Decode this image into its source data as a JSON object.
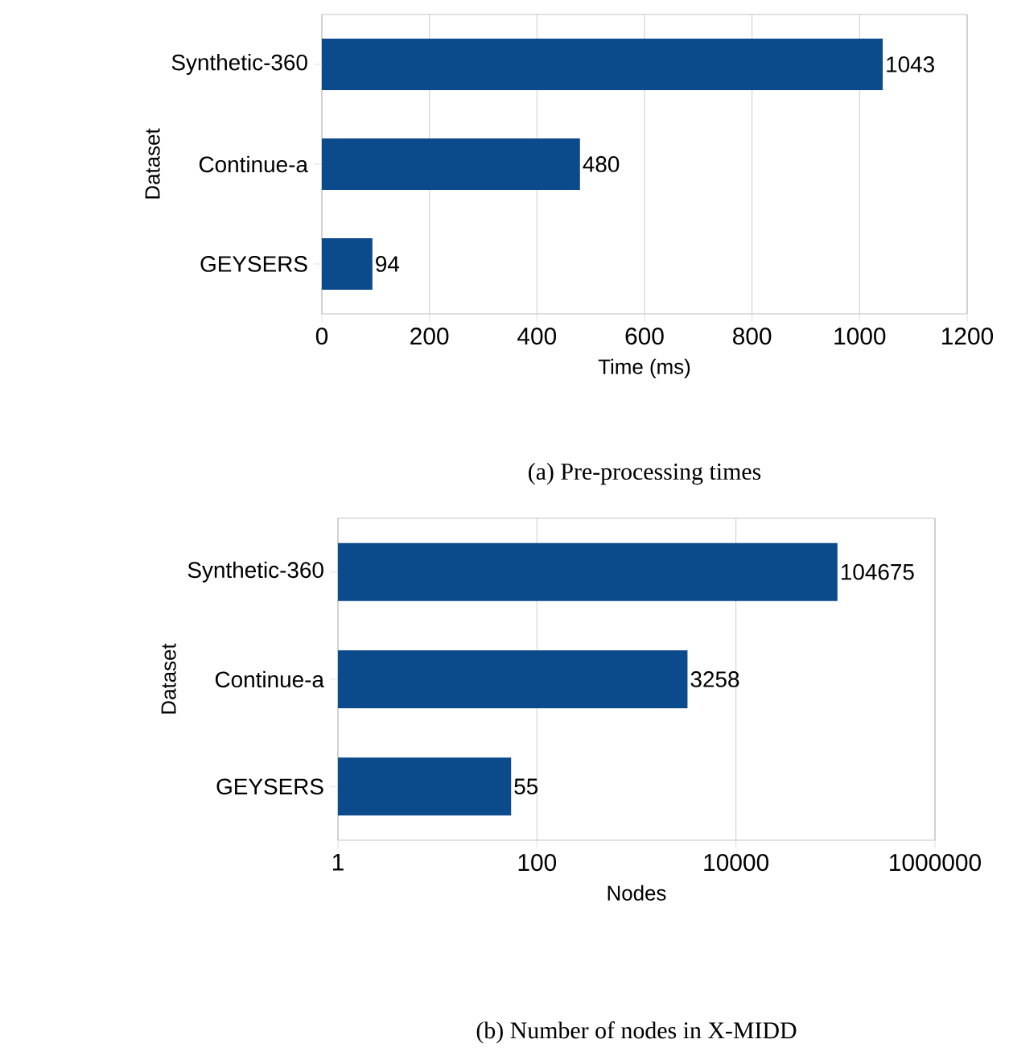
{
  "chart_data": [
    {
      "type": "bar",
      "orientation": "horizontal",
      "title": "(a) Pre-processing times",
      "xlabel": "Time (ms)",
      "ylabel": "Dataset",
      "categories": [
        "Synthetic-360",
        "Continue-a",
        "GEYSERS"
      ],
      "values": [
        1043,
        480,
        94
      ],
      "color": "#0b4a8b",
      "xlim": [
        0,
        1200
      ],
      "xticks": [
        0,
        200,
        400,
        600,
        800,
        1000,
        1200
      ],
      "grid": "x",
      "data_labels": true
    },
    {
      "type": "bar",
      "orientation": "horizontal",
      "title": "(b) Number of nodes in X-MIDD",
      "xlabel": "Nodes",
      "ylabel": "Dataset",
      "categories": [
        "Synthetic-360",
        "Continue-a",
        "GEYSERS"
      ],
      "values": [
        104675,
        3258,
        55
      ],
      "color": "#0b4a8b",
      "xlim": [
        1,
        1000000
      ],
      "xticks": [
        1,
        100,
        10000,
        1000000
      ],
      "log": "x",
      "grid": "x",
      "data_labels": true
    }
  ]
}
